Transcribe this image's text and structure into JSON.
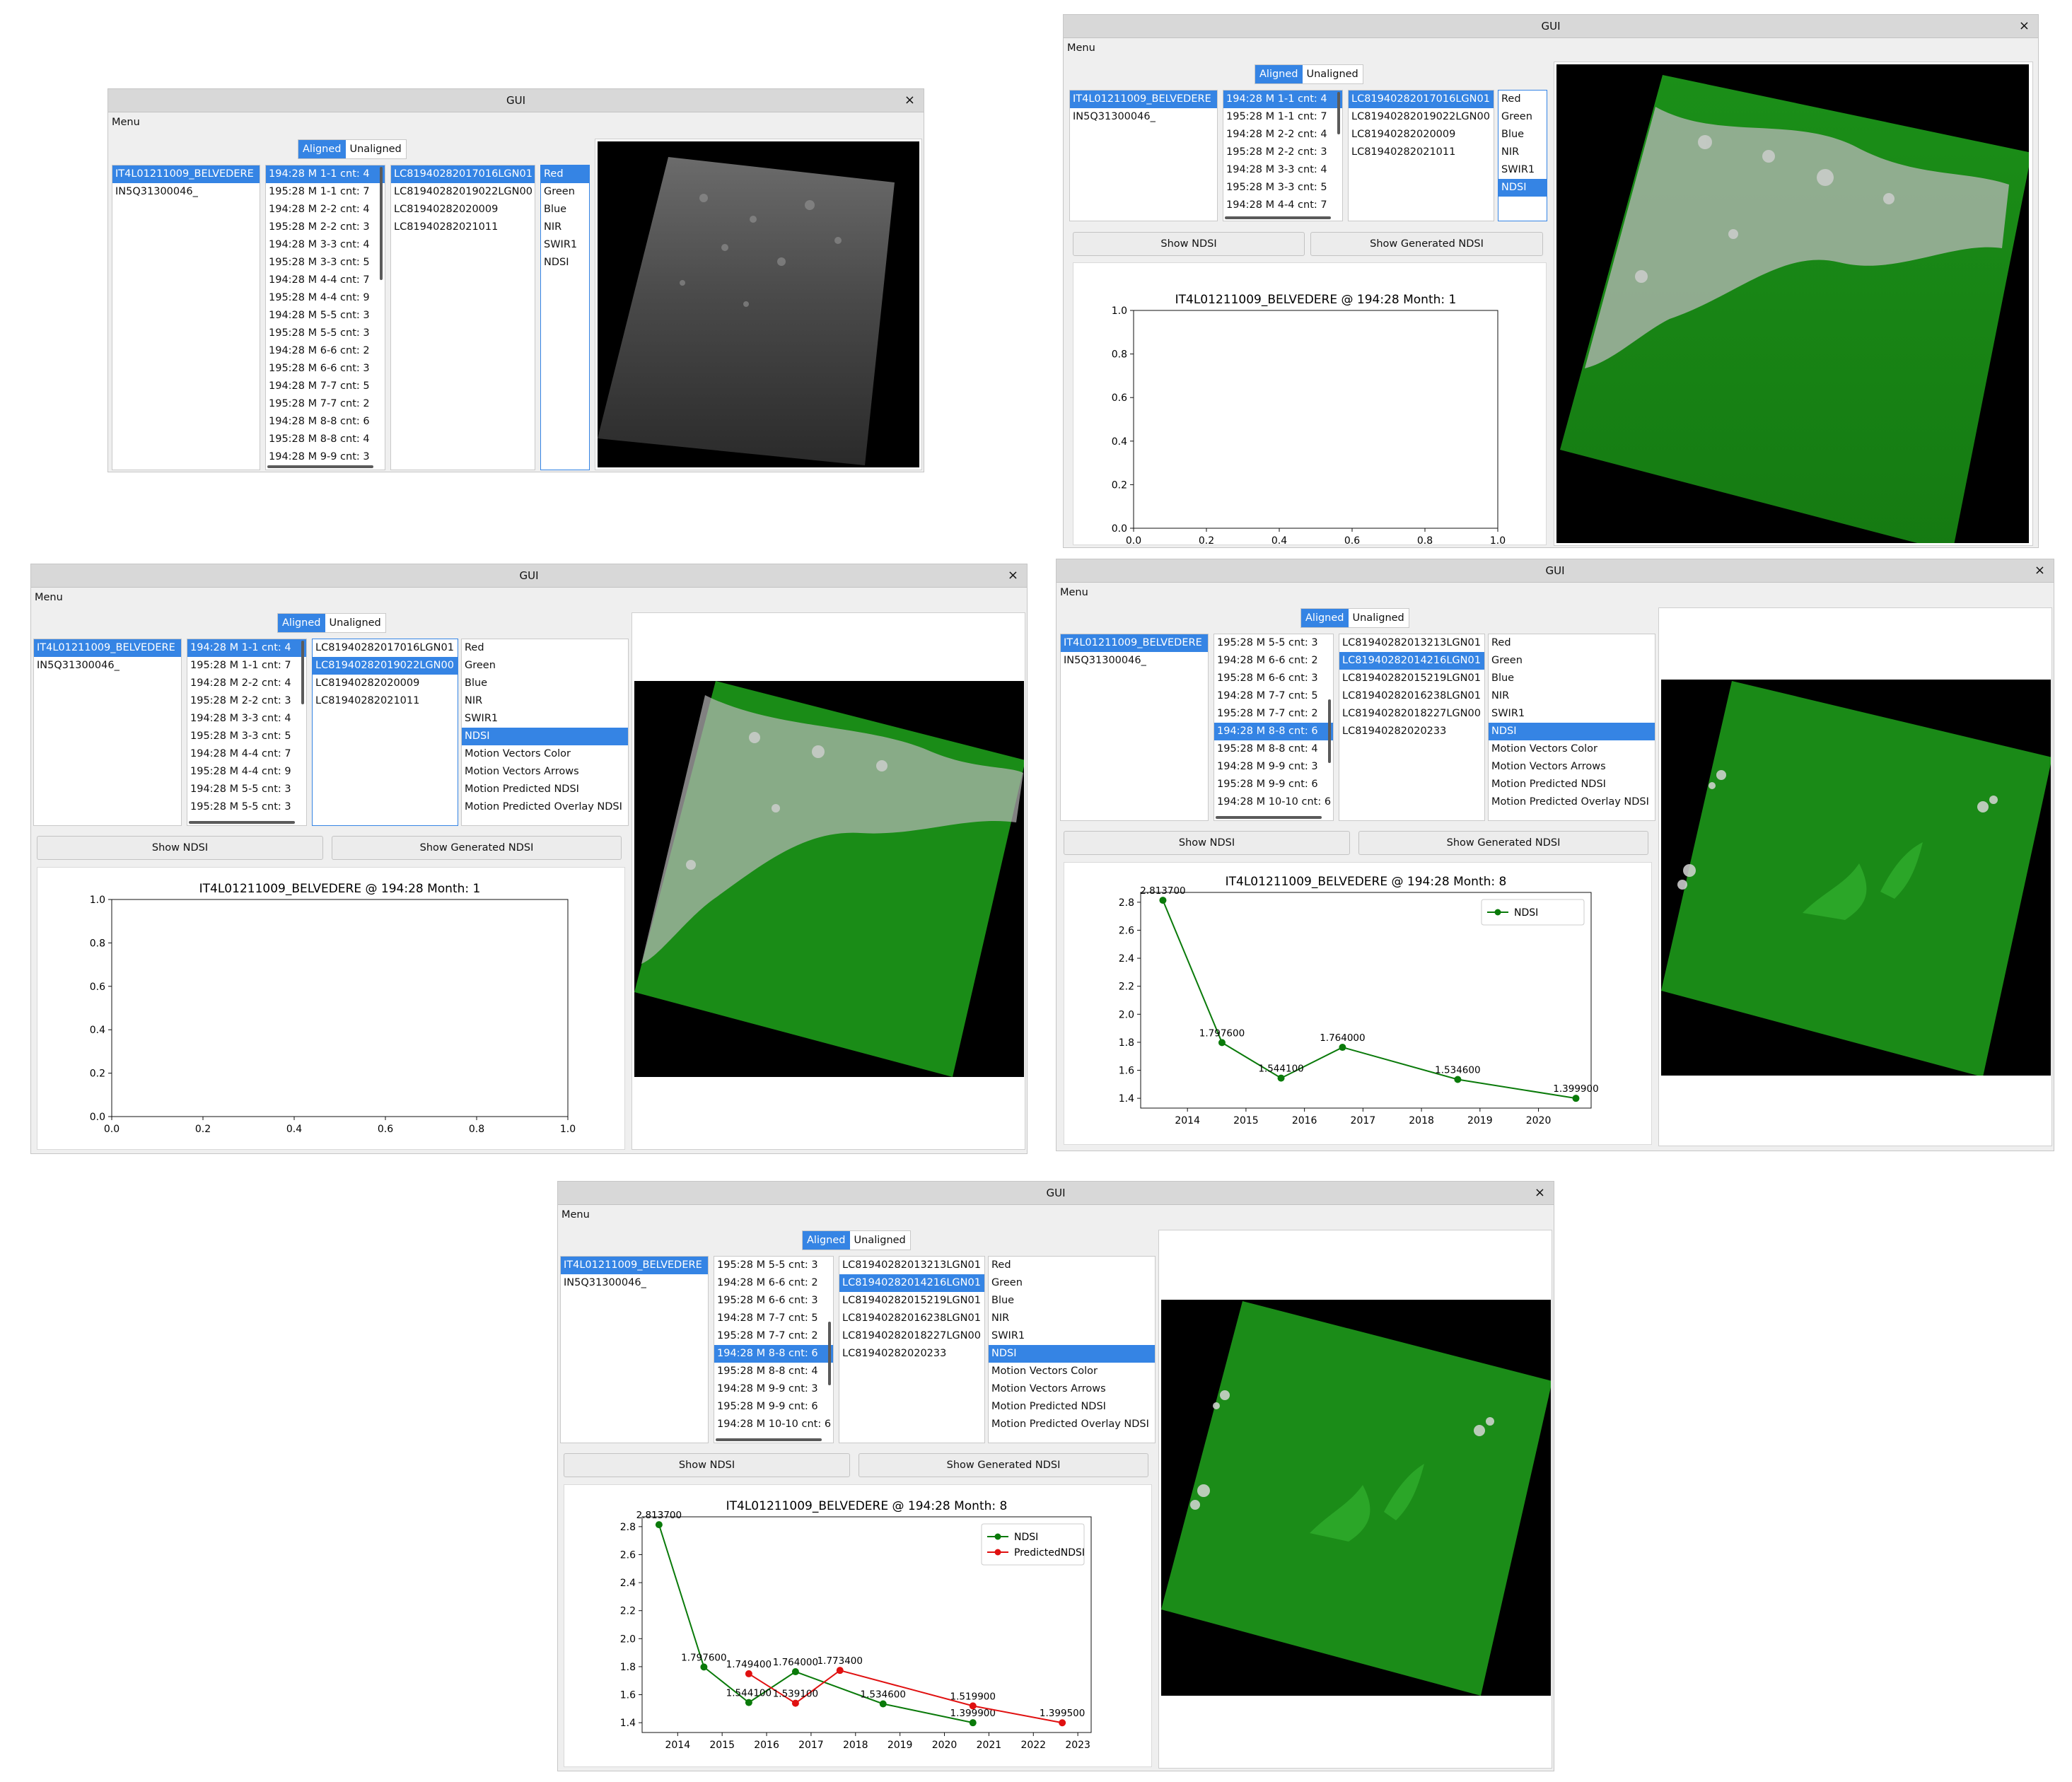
{
  "window_title": "GUI",
  "close_glyph": "×",
  "menu_label": "Menu",
  "toggle": {
    "aligned": "Aligned",
    "unaligned": "Unaligned"
  },
  "buttons": {
    "show_ndsi": "Show NDSI",
    "show_generated": "Show Generated NDSI"
  },
  "sites": [
    "IT4L01211009_BELVEDERE",
    "IN5Q31300046_"
  ],
  "months_top": [
    "194:28 M 1-1 cnt: 4",
    "195:28 M 1-1 cnt: 7",
    "194:28 M 2-2 cnt: 4",
    "195:28 M 2-2 cnt: 3",
    "194:28 M 3-3 cnt: 4",
    "195:28 M 3-3 cnt: 5",
    "194:28 M 4-4 cnt: 7",
    "195:28 M 4-4 cnt: 9",
    "194:28 M 5-5 cnt: 3",
    "195:28 M 5-5 cnt: 3",
    "194:28 M 6-6 cnt: 2",
    "195:28 M 6-6 cnt: 3",
    "194:28 M 7-7 cnt: 5",
    "195:28 M 7-7 cnt: 2",
    "194:28 M 8-8 cnt: 6",
    "195:28 M 8-8 cnt: 4",
    "194:28 M 9-9 cnt: 3"
  ],
  "months_scrolled": [
    "195:28 M 5-5 cnt: 3",
    "194:28 M 6-6 cnt: 2",
    "195:28 M 6-6 cnt: 3",
    "194:28 M 7-7 cnt: 5",
    "195:28 M 7-7 cnt: 2",
    "194:28 M 8-8 cnt: 6",
    "195:28 M 8-8 cnt: 4",
    "194:28 M 9-9 cnt: 3",
    "195:28 M 9-9 cnt: 6",
    "194:28 M 10-10 cnt: 6"
  ],
  "scenes_month1": [
    "LC81940282017016LGN01",
    "LC81940282019022LGN00",
    "LC81940282020009",
    "LC81940282021011"
  ],
  "scenes_month8": [
    "LC81940282013213LGN01",
    "LC81940282014216LGN01",
    "LC81940282015219LGN01",
    "LC81940282016238LGN01",
    "LC81940282018227LGN00",
    "LC81940282020233"
  ],
  "bands_short": [
    "Red",
    "Green",
    "Blue",
    "NIR",
    "SWIR1",
    "NDSI"
  ],
  "bands_full": [
    "Red",
    "Green",
    "Blue",
    "NIR",
    "SWIR1",
    "NDSI",
    "Motion Vectors Color",
    "Motion Vectors Arrows",
    "Motion Predicted NDSI",
    "Motion Predicted Overlay NDSI"
  ],
  "chart_titles": {
    "month1": "IT4L01211009_BELVEDERE @ 194:28 Month: 1",
    "month8": "IT4L01211009_BELVEDERE @ 194:28 Month: 8"
  },
  "colors": {
    "accent": "#3584e4",
    "ndsi": "#0a7a0a",
    "predicted": "#e01010",
    "vegetation": "#1f8c1a"
  },
  "chart_data": [
    {
      "type": "line",
      "title": "IT4L01211009_BELVEDERE @ 194:28 Month: 1",
      "xlim": [
        0,
        1
      ],
      "ylim": [
        0,
        1
      ],
      "xticks": [
        "0.0",
        "0.2",
        "0.4",
        "0.6",
        "0.8",
        "1.0"
      ],
      "yticks": [
        "0.0",
        "0.2",
        "0.4",
        "0.6",
        "0.8",
        "1.0"
      ],
      "series": []
    },
    {
      "type": "line",
      "title": "IT4L01211009_BELVEDERE @ 194:28 Month: 8",
      "xlim": [
        2013.2,
        2020.9
      ],
      "ylim": [
        1.33,
        2.87
      ],
      "xticks": [
        "2014",
        "2015",
        "2016",
        "2017",
        "2018",
        "2019",
        "2020"
      ],
      "yticks": [
        "1.4",
        "1.6",
        "1.8",
        "2.0",
        "2.2",
        "2.4",
        "2.6",
        "2.8"
      ],
      "legend": "top-right",
      "series": [
        {
          "name": "NDSI",
          "color": "#0a7a0a",
          "x": [
            2013.58,
            2014.59,
            2015.6,
            2016.65,
            2018.62,
            2020.64
          ],
          "y": [
            2.8137,
            1.7976,
            1.5441,
            1.764,
            1.5346,
            1.3999
          ],
          "labels": [
            "2.813700",
            "1.797600",
            "1.544100",
            "1.764000",
            "1.534600",
            "1.399900"
          ]
        }
      ]
    },
    {
      "type": "line",
      "title": "IT4L01211009_BELVEDERE @ 194:28 Month: 8",
      "xlim": [
        2013.2,
        2023.3
      ],
      "ylim": [
        1.33,
        2.87
      ],
      "xticks": [
        "2014",
        "2015",
        "2016",
        "2017",
        "2018",
        "2019",
        "2020",
        "2021",
        "2022",
        "2023"
      ],
      "yticks": [
        "1.4",
        "1.6",
        "1.8",
        "2.0",
        "2.2",
        "2.4",
        "2.6",
        "2.8"
      ],
      "legend": "top-right",
      "series": [
        {
          "name": "NDSI",
          "color": "#0a7a0a",
          "x": [
            2013.58,
            2014.59,
            2015.6,
            2016.65,
            2018.62,
            2020.64
          ],
          "y": [
            2.8137,
            1.7976,
            1.5441,
            1.764,
            1.5346,
            1.3999
          ],
          "labels": [
            "2.813700",
            "1.797600",
            "1.544100",
            "1.764000",
            "1.534600",
            "1.399900"
          ]
        },
        {
          "name": "PredictedNDSI",
          "color": "#e01010",
          "x": [
            2015.6,
            2016.65,
            2017.65,
            2020.64,
            2022.65
          ],
          "y": [
            1.7494,
            1.5391,
            1.7734,
            1.5199,
            1.3995
          ],
          "labels": [
            "1.749400",
            "1.539100",
            "1.773400",
            "1.519900",
            "1.399500"
          ]
        }
      ]
    }
  ]
}
